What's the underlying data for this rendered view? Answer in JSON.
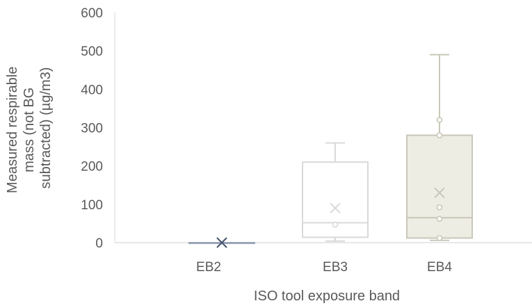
{
  "chart_data": {
    "type": "box",
    "title": "",
    "xlabel": "ISO tool exposure band",
    "ylabel_lines": [
      "Measured respirable",
      "mass (not BG",
      "subtracted) (µg/m3)"
    ],
    "ylim": [
      0,
      600
    ],
    "yticks": [
      0,
      100,
      200,
      300,
      400,
      500,
      600
    ],
    "ytick_labels": [
      "0",
      "100",
      "200",
      "300",
      "400",
      "500",
      "600"
    ],
    "categories": [
      "EB2",
      "EB3",
      "EB4"
    ],
    "grid": false,
    "series": [
      {
        "category": "EB2",
        "min": 0,
        "q1": 0,
        "median": 0,
        "q3": 0,
        "max": 0,
        "mean": 0,
        "points": [],
        "color": "#9aa6b8",
        "mean_color": "#44546a",
        "fill": "none"
      },
      {
        "category": "EB3",
        "min": 4,
        "q1": 14,
        "median": 52,
        "q3": 210,
        "max": 260,
        "mean": 90,
        "points": [
          47
        ],
        "color": "#d9d9d9",
        "mean_color": "#d9d9d9",
        "fill": "#ffffff"
      },
      {
        "category": "EB4",
        "min": 6,
        "q1": 12,
        "median": 65,
        "q3": 280,
        "max": 490,
        "mean": 130,
        "points": [
          320,
          280,
          92,
          62,
          12
        ],
        "color": "#c9c7b8",
        "mean_color": "#c9c7b8",
        "fill": "#eeede3"
      }
    ]
  }
}
